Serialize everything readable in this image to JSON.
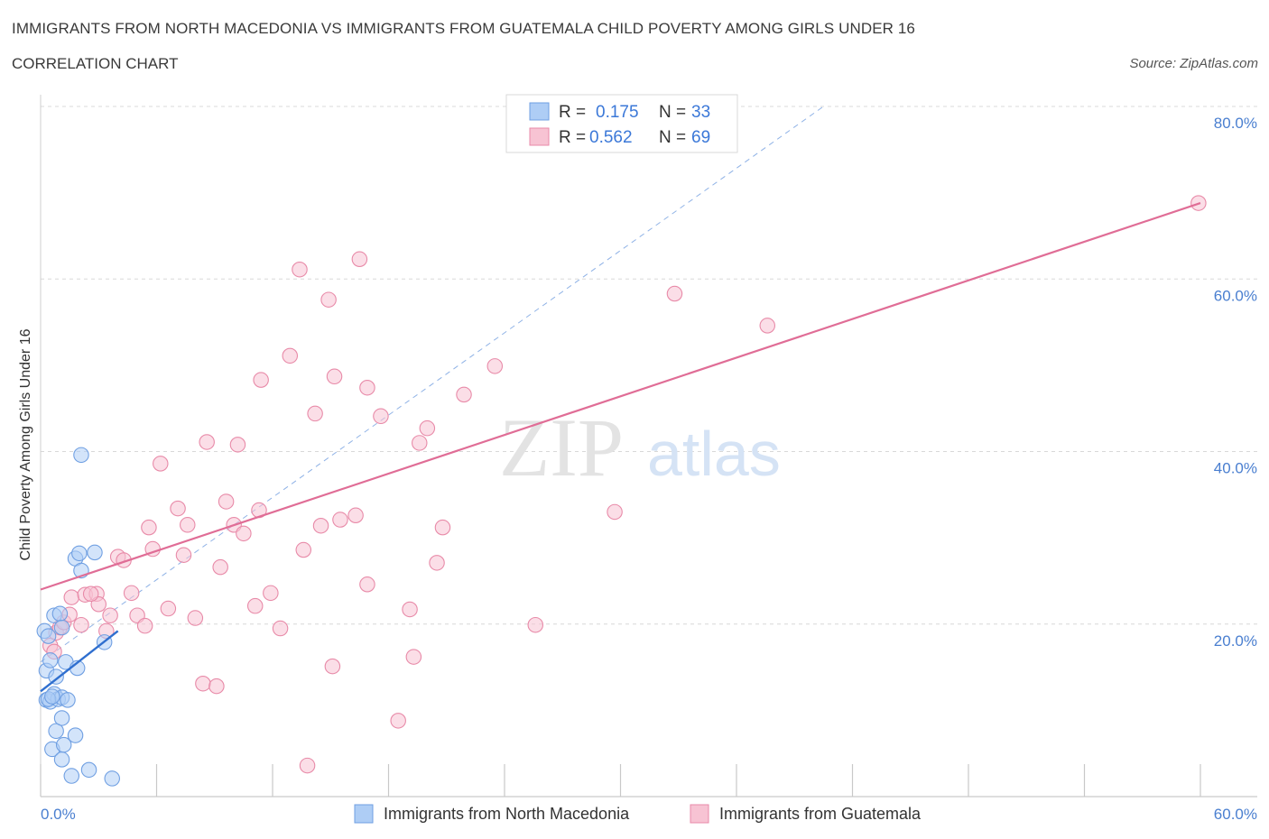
{
  "title": "IMMIGRANTS FROM NORTH MACEDONIA VS IMMIGRANTS FROM GUATEMALA CHILD POVERTY AMONG GIRLS UNDER 16",
  "subtitle": "CORRELATION CHART",
  "source": "Source: ZipAtlas.com",
  "watermark": {
    "zip": "ZIP",
    "atlas": "atlas"
  },
  "colors": {
    "blue_fill": "#aecdf5",
    "blue_stroke": "#6f9fe2",
    "blue_line": "#2f6fcf",
    "pink_fill": "#f7c3d3",
    "pink_stroke": "#e88aa8",
    "pink_line": "#e06d96",
    "grid": "#d8d8d8",
    "axis_text": "#4a7fd0"
  },
  "legend": {
    "rows": [
      {
        "r_label": "R = ",
        "r_value": "0.175",
        "n_label": "N = ",
        "n_value": "33"
      },
      {
        "r_label": "R = ",
        "r_value": "0.562",
        "n_label": "N = ",
        "n_value": "69"
      }
    ]
  },
  "chart_data": {
    "type": "scatter",
    "title": "IMMIGRANTS FROM NORTH MACEDONIA VS IMMIGRANTS FROM GUATEMALA CHILD POVERTY AMONG GIRLS UNDER 16",
    "xlabel": "",
    "ylabel": "Child Poverty Among Girls Under 16",
    "xlim": [
      0,
      60
    ],
    "ylim": [
      0,
      80
    ],
    "x_tick_labels": [
      "0.0%",
      "60.0%"
    ],
    "y_ticks": [
      20,
      40,
      60,
      80
    ],
    "y_tick_labels": [
      "20.0%",
      "40.0%",
      "60.0%",
      "80.0%"
    ],
    "series": [
      {
        "name": "Immigrants from North Macedonia",
        "color": "blue",
        "R": 0.175,
        "N": 33,
        "trend": {
          "x0": 0,
          "y0": 12.2,
          "x1": 4.0,
          "y1": 19.2
        },
        "points": [
          [
            0.2,
            19.2
          ],
          [
            0.4,
            18.6
          ],
          [
            0.7,
            21.0
          ],
          [
            1.0,
            21.2
          ],
          [
            1.1,
            19.6
          ],
          [
            1.8,
            27.6
          ],
          [
            2.0,
            28.2
          ],
          [
            2.1,
            26.2
          ],
          [
            2.8,
            28.3
          ],
          [
            2.1,
            39.6
          ],
          [
            0.3,
            14.6
          ],
          [
            0.5,
            15.8
          ],
          [
            0.8,
            13.9
          ],
          [
            1.3,
            15.6
          ],
          [
            1.9,
            14.9
          ],
          [
            3.3,
            17.9
          ],
          [
            0.3,
            11.2
          ],
          [
            0.5,
            11.0
          ],
          [
            0.7,
            11.9
          ],
          [
            0.9,
            11.3
          ],
          [
            1.1,
            11.5
          ],
          [
            1.4,
            11.2
          ],
          [
            0.8,
            7.6
          ],
          [
            1.1,
            9.1
          ],
          [
            1.8,
            7.1
          ],
          [
            0.6,
            5.5
          ],
          [
            1.2,
            6.0
          ],
          [
            1.1,
            4.3
          ],
          [
            1.6,
            2.4
          ],
          [
            2.5,
            3.1
          ],
          [
            3.7,
            2.1
          ],
          [
            0.4,
            11.3
          ],
          [
            0.6,
            11.6
          ]
        ]
      },
      {
        "name": "Immigrants from Guatemala",
        "color": "pink",
        "R": 0.562,
        "N": 69,
        "trend": {
          "x0": 0,
          "y0": 24.0,
          "x1": 60,
          "y1": 68.8
        },
        "points": [
          [
            0.5,
            17.5
          ],
          [
            0.7,
            16.8
          ],
          [
            0.8,
            19.0
          ],
          [
            1.0,
            19.6
          ],
          [
            1.2,
            20.2
          ],
          [
            1.5,
            21.1
          ],
          [
            1.6,
            23.1
          ],
          [
            2.1,
            19.9
          ],
          [
            2.3,
            23.4
          ],
          [
            2.9,
            23.5
          ],
          [
            3.0,
            22.3
          ],
          [
            3.4,
            19.2
          ],
          [
            3.6,
            21.0
          ],
          [
            4.0,
            27.8
          ],
          [
            4.3,
            27.4
          ],
          [
            4.7,
            23.6
          ],
          [
            5.0,
            21.0
          ],
          [
            5.4,
            19.8
          ],
          [
            5.6,
            31.2
          ],
          [
            5.8,
            28.7
          ],
          [
            6.2,
            38.6
          ],
          [
            6.6,
            21.8
          ],
          [
            7.1,
            33.4
          ],
          [
            7.4,
            28.0
          ],
          [
            7.6,
            31.5
          ],
          [
            8.0,
            20.7
          ],
          [
            8.4,
            13.1
          ],
          [
            8.6,
            41.1
          ],
          [
            9.1,
            12.8
          ],
          [
            9.3,
            26.6
          ],
          [
            9.6,
            34.2
          ],
          [
            10.0,
            31.5
          ],
          [
            10.2,
            40.8
          ],
          [
            10.5,
            30.5
          ],
          [
            11.1,
            22.1
          ],
          [
            11.3,
            33.2
          ],
          [
            11.4,
            48.3
          ],
          [
            11.9,
            23.6
          ],
          [
            12.4,
            19.5
          ],
          [
            12.9,
            51.1
          ],
          [
            13.4,
            61.1
          ],
          [
            13.6,
            28.6
          ],
          [
            13.8,
            3.6
          ],
          [
            14.2,
            44.4
          ],
          [
            14.5,
            31.4
          ],
          [
            14.9,
            57.6
          ],
          [
            15.1,
            15.1
          ],
          [
            15.2,
            48.7
          ],
          [
            15.5,
            32.1
          ],
          [
            16.3,
            32.6
          ],
          [
            16.5,
            62.3
          ],
          [
            16.9,
            24.6
          ],
          [
            16.9,
            47.4
          ],
          [
            17.6,
            44.1
          ],
          [
            18.5,
            8.8
          ],
          [
            19.1,
            21.7
          ],
          [
            19.3,
            16.2
          ],
          [
            19.6,
            41.0
          ],
          [
            20.0,
            42.7
          ],
          [
            20.5,
            27.1
          ],
          [
            20.8,
            31.2
          ],
          [
            21.9,
            46.6
          ],
          [
            23.5,
            49.9
          ],
          [
            25.6,
            19.9
          ],
          [
            29.7,
            33.0
          ],
          [
            32.8,
            58.3
          ],
          [
            37.6,
            54.6
          ],
          [
            59.9,
            68.8
          ],
          [
            2.6,
            23.5
          ]
        ]
      }
    ],
    "reference_line": {
      "style": "dashed",
      "x0": 0,
      "y0": 15.6,
      "x1": 40.5,
      "y1": 80
    }
  },
  "bottom_legend": {
    "items": [
      {
        "label": "Immigrants from North Macedonia",
        "color": "blue"
      },
      {
        "label": "Immigrants from Guatemala",
        "color": "pink"
      }
    ]
  }
}
